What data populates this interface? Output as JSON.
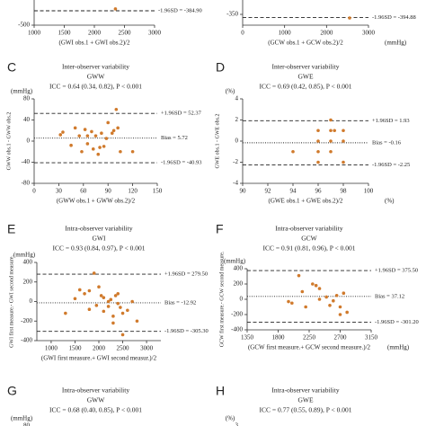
{
  "chart_data": [
    {
      "type": "scatter",
      "xlabel": "(GWI obs.1 + GWI obs.2)/2",
      "xlim": [
        1000,
        3000
      ],
      "xticks": [
        1000,
        1500,
        2000,
        2500,
        3000
      ],
      "ylim": [
        -500,
        500
      ],
      "yticks": [
        -500
      ],
      "lines": [
        {
          "value": -384.9,
          "label": "-1.96SD = -384.90",
          "style": "dashed"
        }
      ],
      "x": [
        2350
      ],
      "y": [
        -370
      ],
      "color": "#d07a2c"
    },
    {
      "type": "scatter",
      "xlabel": "(GCW obs.1 + GCW obs.2)/2",
      "x_unit": "(mmHg)",
      "xlim": [
        0,
        3000
      ],
      "xticks": [
        0,
        1000,
        2000,
        3000
      ],
      "ylim": [
        -500,
        500
      ],
      "yticks": [
        -350
      ],
      "lines": [
        {
          "value": -394.88,
          "label": "-1.96SD = -394.88",
          "style": "dashed"
        }
      ],
      "x": [
        2550
      ],
      "y": [
        -400
      ],
      "color": "#d07a2c"
    },
    {
      "type": "scatter",
      "letter": "C",
      "title": "Inter-observer variability",
      "subtitle": "GWW",
      "icc": "ICC = 0.64 (0.34, 0.82), P < 0.001",
      "y_unit": "(mmHg)",
      "ylabel": "GWW obs.1 - GWW obs.2",
      "xlabel": "(GWW obs.1 + GWW obs.2)/2",
      "xlim": [
        0,
        150
      ],
      "xticks": [
        0,
        30,
        60,
        90,
        120,
        150
      ],
      "ylim": [
        -80,
        80
      ],
      "yticks": [
        -80,
        -40,
        0,
        40,
        80
      ],
      "lines": [
        {
          "value": 52.37,
          "label": "+1.96SD = 52.37",
          "style": "dashed"
        },
        {
          "value": 5.72,
          "label": "Bias = 5.72",
          "style": "dotted"
        },
        {
          "value": -40.93,
          "label": "-1.96SD = -40.93",
          "style": "dashed"
        }
      ],
      "x": [
        32,
        35,
        45,
        50,
        55,
        58,
        62,
        65,
        70,
        72,
        75,
        78,
        80,
        82,
        85,
        90,
        95,
        97,
        100,
        102,
        105,
        120,
        65,
        88
      ],
      "y": [
        12,
        17,
        -8,
        25,
        10,
        -20,
        22,
        -5,
        18,
        -15,
        10,
        -25,
        -12,
        15,
        -10,
        35,
        15,
        20,
        60,
        25,
        -20,
        -20,
        10,
        5
      ],
      "color": "#d07a2c"
    },
    {
      "type": "scatter",
      "letter": "D",
      "title": "Inter-observer variability",
      "subtitle": "GWE",
      "icc": "ICC = 0.69 (0.42, 0.85), P < 0.001",
      "y_unit": "(%)",
      "x_unit": "(%)",
      "ylabel": "GWE obs.1 - GWE obs.2",
      "xlabel": "(GWE obs.1 + GWE obs.2)/2",
      "xlim": [
        90,
        100
      ],
      "xticks": [
        90,
        92,
        94,
        96,
        98,
        100
      ],
      "ylim": [
        -4,
        4
      ],
      "yticks": [
        -4,
        -2,
        0,
        2,
        4
      ],
      "lines": [
        {
          "value": 1.93,
          "label": "+1.96SD = 1.93",
          "style": "dashed"
        },
        {
          "value": -0.16,
          "label": "Bias = -0.16",
          "style": "dotted"
        },
        {
          "value": -2.25,
          "label": "-1.96SD = -2.25",
          "style": "dashed"
        }
      ],
      "x": [
        94,
        96,
        96,
        96,
        96,
        97,
        97,
        97,
        97,
        98,
        98,
        98,
        97.3
      ],
      "y": [
        -1,
        1,
        0,
        -1,
        -2,
        1,
        0,
        -1,
        2,
        1,
        0,
        -2,
        1
      ],
      "color": "#d07a2c"
    },
    {
      "type": "scatter",
      "letter": "E",
      "title": "Intra-observer variability",
      "subtitle": "GWI",
      "icc": "ICC = 0.93 (0.84, 0.97), P < 0.001",
      "y_unit": "(mmHg)",
      "ylabel": "GWI first measure.- GWI second measure.",
      "xlabel": "(GWI first measure.+ GWI second measur.)/2",
      "xlim": [
        700,
        3300
      ],
      "xticks": [
        1000,
        1500,
        2000,
        2500,
        3000
      ],
      "ylim": [
        -400,
        400
      ],
      "yticks": [
        -400,
        -200,
        0,
        200,
        400
      ],
      "lines": [
        {
          "value": 279.5,
          "label": "+1.96SD = 279.50",
          "style": "dashed"
        },
        {
          "value": -12.92,
          "label": "Bias = -12.92",
          "style": "dotted"
        },
        {
          "value": -305.3,
          "label": "-1.96SD = -305.30",
          "style": "dashed"
        }
      ],
      "x": [
        1300,
        1500,
        1600,
        1700,
        1800,
        1800,
        1900,
        1950,
        2000,
        2050,
        2100,
        2100,
        2200,
        2200,
        2250,
        2300,
        2350,
        2400,
        2400,
        2450,
        2500,
        2600,
        2700,
        2800,
        2500,
        2300
      ],
      "y": [
        -120,
        30,
        120,
        80,
        110,
        -80,
        290,
        -40,
        150,
        60,
        40,
        -100,
        -50,
        0,
        20,
        -150,
        60,
        -20,
        80,
        -60,
        -120,
        -90,
        0,
        -200,
        -340,
        -220
      ],
      "color": "#d07a2c"
    },
    {
      "type": "scatter",
      "letter": "F",
      "title": "Intra-observer variability",
      "subtitle": "GCW",
      "icc": "ICC = 0.91 (0.81, 0.96), P < 0.001",
      "y_unit": "(mmHg)",
      "x_unit": "(mmHg)",
      "ylabel": "GCW first measure.- GCW second measure.",
      "xlabel": "(GCW first measure.+ GCW second measure.)/2",
      "xlim": [
        1350,
        3150
      ],
      "xticks": [
        1350,
        1800,
        2250,
        2700,
        3150
      ],
      "ylim": [
        -400,
        400
      ],
      "yticks": [
        -400,
        -200,
        0,
        200,
        400
      ],
      "lines": [
        {
          "value": 375.5,
          "label": "+1.96SD = 375.50",
          "style": "dashed"
        },
        {
          "value": 37.12,
          "label": "Bias = 37.12",
          "style": "dotted"
        },
        {
          "value": -301.2,
          "label": "-1.96SD = -301.20",
          "style": "dashed"
        }
      ],
      "x": [
        2100,
        2150,
        2200,
        2300,
        2350,
        2400,
        2400,
        2500,
        2550,
        2600,
        2650,
        2700,
        2700,
        2750,
        2800,
        1950,
        2000
      ],
      "y": [
        310,
        100,
        -100,
        200,
        180,
        140,
        0,
        30,
        -80,
        -20,
        50,
        -200,
        -100,
        80,
        -170,
        -30,
        -50
      ],
      "color": "#d07a2c"
    },
    {
      "type": "scatter",
      "letter": "G",
      "title": "Intra-observer variability",
      "subtitle": "GWW",
      "icc": "ICC = 0.68 (0.40, 0.85), P < 0.001",
      "y_unit": "(mmHg)",
      "ylim": [
        -80,
        80
      ],
      "yticks": [
        80
      ]
    },
    {
      "type": "scatter",
      "letter": "H",
      "title": "Intra-observer variability",
      "subtitle": "GWE",
      "icc": "ICC = 0.77 (0.55, 0.89), P < 0.001",
      "y_unit": "(%)",
      "ylim": [
        -3,
        3
      ],
      "yticks": [
        3
      ]
    }
  ]
}
